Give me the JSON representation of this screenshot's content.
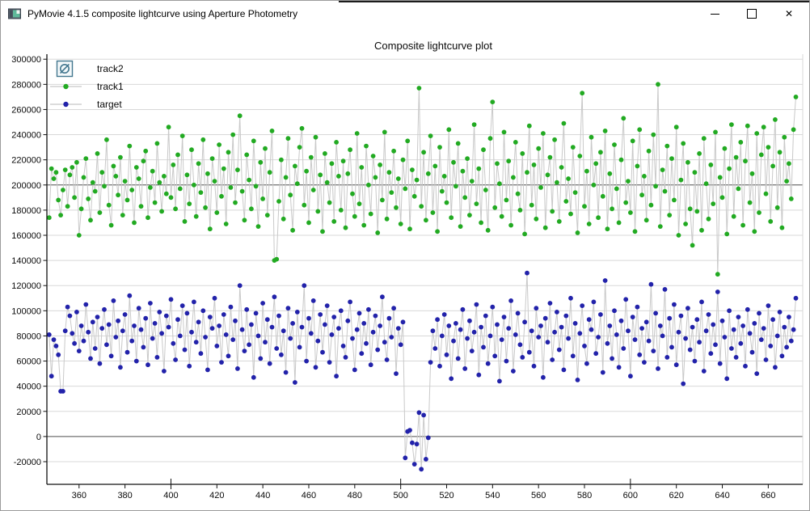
{
  "window": {
    "title": "PyMovie 4.1.5 composite lightcurve using Aperture Photometry",
    "controls": [
      {
        "name": "minimize",
        "icon": "minimize-icon"
      },
      {
        "name": "maximize",
        "icon": "maximize-icon"
      },
      {
        "name": "close",
        "icon": "close-icon"
      }
    ]
  },
  "plot": {
    "legend_hidden_icon": "crossed-circle-icon",
    "legend_hidden_icon_color": "#43778f"
  },
  "chart_data": {
    "type": "scatter",
    "title": "Composite lightcurve plot",
    "xlabel": "",
    "ylabel": "",
    "xlim": [
      346,
      675
    ],
    "ylim": [
      -38000,
      304000
    ],
    "x_ticks": [
      360,
      380,
      400,
      420,
      440,
      460,
      480,
      500,
      520,
      540,
      560,
      580,
      600,
      620,
      640,
      660
    ],
    "y_ticks": [
      -20000,
      0,
      20000,
      40000,
      60000,
      80000,
      100000,
      120000,
      140000,
      160000,
      180000,
      200000,
      220000,
      240000,
      260000,
      280000,
      300000
    ],
    "reference_lines": [
      0,
      200000
    ],
    "grid": true,
    "grid_color": "#d8d8d8",
    "reference_line_color": "#4d4d4d",
    "line_color": "#c9c9c9",
    "legend_position": "top-left",
    "x_start": 347,
    "x_step": 1,
    "value_scale": 1000,
    "series": [
      {
        "name": "track2",
        "visible": false,
        "color": "#43778f",
        "values_k": []
      },
      {
        "name": "track1",
        "visible": true,
        "color": "#22aa22",
        "values_k": [
          174,
          213,
          205,
          210,
          188,
          176,
          196,
          212,
          183,
          208,
          214,
          190,
          218,
          160,
          181,
          206,
          221,
          189,
          172,
          202,
          195,
          225,
          178,
          210,
          199,
          236,
          184,
          168,
          215,
          207,
          192,
          222,
          176,
          203,
          188,
          231,
          196,
          170,
          214,
          205,
          183,
          219,
          227,
          174,
          198,
          211,
          186,
          233,
          202,
          179,
          207,
          193,
          246,
          190,
          216,
          181,
          224,
          197,
          239,
          171,
          208,
          185,
          228,
          200,
          175,
          217,
          194,
          236,
          182,
          209,
          165,
          221,
          203,
          178,
          232,
          191,
          213,
          169,
          226,
          198,
          240,
          186,
          212,
          255,
          195,
          172,
          224,
          204,
          181,
          235,
          199,
          167,
          218,
          189,
          229,
          176,
          210,
          243,
          140,
          141,
          187,
          220,
          173,
          206,
          237,
          192,
          164,
          215,
          201,
          230,
          245,
          184,
          211,
          170,
          222,
          196,
          238,
          179,
          208,
          163,
          225,
          202,
          186,
          217,
          171,
          234,
          207,
          180,
          219,
          166,
          209,
          228,
          193,
          175,
          241,
          185,
          214,
          168,
          231,
          200,
          177,
          223,
          206,
          162,
          216,
          188,
          242,
          173,
          210,
          194,
          227,
          182,
          205,
          169,
          220,
          197,
          235,
          165,
          212,
          191,
          204,
          277,
          183,
          226,
          172,
          209,
          239,
          178,
          215,
          163,
          230,
          195,
          207,
          186,
          244,
          174,
          218,
          199,
          233,
          167,
          211,
          190,
          221,
          176,
          203,
          248,
          185,
          213,
          170,
          228,
          196,
          164,
          237,
          266,
          182,
          217,
          201,
          175,
          242,
          188,
          219,
          168,
          206,
          234,
          193,
          180,
          225,
          161,
          210,
          247,
          184,
          216,
          173,
          229,
          198,
          241,
          166,
          208,
          222,
          179,
          236,
          202,
          171,
          214,
          249,
          187,
          205,
          177,
          230,
          194,
          162,
          223,
          273,
          183,
          211,
          169,
          238,
          200,
          217,
          174,
          226,
          191,
          243,
          165,
          209,
          181,
          232,
          197,
          170,
          220,
          253,
          186,
          203,
          178,
          235,
          163,
          215,
          244,
          192,
          207,
          172,
          227,
          184,
          240,
          199,
          280,
          167,
          212,
          195,
          231,
          176,
          221,
          188,
          246,
          160,
          204,
          233,
          169,
          218,
          181,
          152,
          210,
          179,
          225,
          164,
          237,
          201,
          173,
          216,
          185,
          242,
          129,
          206,
          190,
          229,
          161,
          213,
          248,
          175,
          222,
          197,
          234,
          168,
          219,
          247,
          186,
          209,
          163,
          241,
          178,
          224,
          246,
          193,
          230,
          171,
          215,
          252,
          182,
          226,
          166,
          238,
          203,
          217,
          189,
          244,
          270
        ]
      },
      {
        "name": "target",
        "visible": true,
        "color": "#2222aa",
        "values_k": [
          81,
          48,
          77,
          72,
          65,
          36,
          36,
          84,
          103,
          96,
          82,
          74,
          99,
          68,
          88,
          76,
          105,
          83,
          62,
          91,
          70,
          95,
          58,
          86,
          101,
          73,
          89,
          64,
          108,
          79,
          92,
          55,
          84,
          97,
          67,
          112,
          76,
          88,
          60,
          102,
          85,
          71,
          94,
          57,
          106,
          78,
          90,
          63,
          99,
          82,
          52,
          96,
          87,
          109,
          74,
          61,
          93,
          80,
          104,
          69,
          98,
          56,
          83,
          107,
          75,
          91,
          66,
          100,
          79,
          53,
          95,
          86,
          110,
          72,
          88,
          59,
          97,
          81,
          64,
          103,
          77,
          92,
          54,
          120,
          85,
          68,
          101,
          73,
          89,
          47,
          98,
          80,
          62,
          106,
          75,
          93,
          58,
          87,
          111,
          70,
          96,
          65,
          84,
          51,
          102,
          78,
          90,
          43,
          99,
          71,
          87,
          120,
          60,
          94,
          82,
          108,
          55,
          76,
          97,
          67,
          89,
          104,
          59,
          81,
          95,
          48,
          86,
          100,
          72,
          63,
          92,
          107,
          78,
          53,
          85,
          98,
          66,
          90,
          74,
          101,
          57,
          83,
          96,
          69,
          88,
          111,
          75,
          61,
          94,
          79,
          102,
          50,
          86,
          73,
          91,
          -17,
          4,
          5,
          -5,
          -22,
          -6,
          19,
          -26,
          17,
          -18,
          -1,
          59,
          84,
          70,
          93,
          56,
          80,
          97,
          65,
          88,
          46,
          76,
          90,
          62,
          85,
          101,
          54,
          78,
          92,
          68,
          83,
          105,
          49,
          87,
          71,
          96,
          58,
          80,
          103,
          64,
          89,
          44,
          77,
          95,
          60,
          86,
          108,
          52,
          81,
          98,
          73,
          63,
          91,
          130,
          67,
          84,
          56,
          102,
          79,
          88,
          47,
          94,
          75,
          106,
          61,
          83,
          99,
          69,
          87,
          53,
          96,
          78,
          110,
          64,
          90,
          45,
          82,
          104,
          72,
          58,
          93,
          85,
          107,
          66,
          79,
          97,
          51,
          124,
          74,
          88,
          62,
          100,
          81,
          55,
          92,
          70,
          109,
          84,
          48,
          95,
          77,
          103,
          65,
          86,
          59,
          91,
          76,
          121,
          68,
          98,
          54,
          88,
          80,
          117,
          63,
          94,
          71,
          105,
          57,
          83,
          96,
          42,
          78,
          102,
          69,
          87,
          60,
          93,
          75,
          107,
          52,
          84,
          97,
          66,
          89,
          73,
          115,
          58,
          92,
          79,
          46,
          100,
          70,
          85,
          63,
          95,
          74,
          88,
          56,
          101,
          82,
          67,
          90,
          50,
          98,
          77,
          86,
          61,
          104,
          72,
          93,
          55,
          80,
          99,
          64,
          87,
          71,
          95,
          76,
          85,
          110
        ]
      }
    ]
  }
}
